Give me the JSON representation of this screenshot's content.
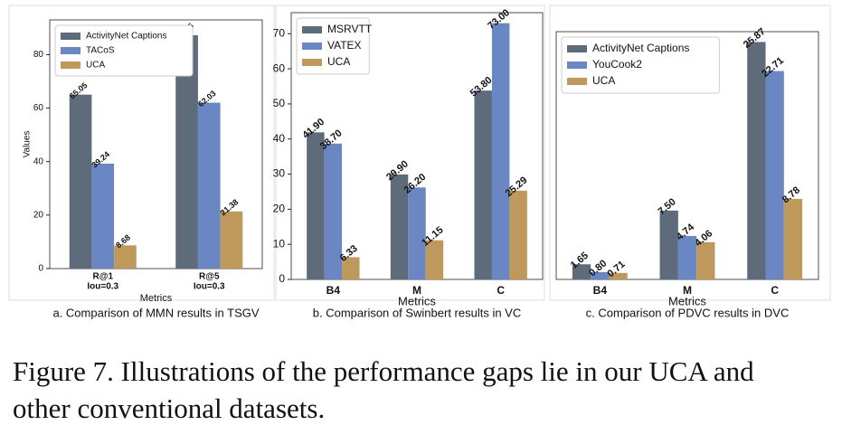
{
  "chart_data": [
    {
      "type": "bar",
      "caption": "a. Comparison of MMN results in TSGV",
      "ylabel": "Values",
      "xlabel": "Metrics",
      "categories": [
        [
          "R@1",
          "Iou=0.3"
        ],
        [
          "R@5",
          "Iou=0.3"
        ]
      ],
      "series": [
        {
          "name": "ActivityNet Captions",
          "color": "#5d6b7a",
          "values": [
            65.05,
            87.25
          ]
        },
        {
          "name": "TACoS",
          "color": "#6a86c3",
          "values": [
            39.24,
            62.03
          ]
        },
        {
          "name": "UCA",
          "color": "#bf995c",
          "values": [
            8.68,
            21.38
          ]
        }
      ],
      "ylim": [
        0,
        93
      ],
      "yticks": [
        0,
        20,
        40,
        60,
        80
      ],
      "legend": "upper left"
    },
    {
      "type": "bar",
      "caption": "b. Comparison of Swinbert results in VC",
      "xlabel": "Metrics",
      "categories": [
        [
          "B4"
        ],
        [
          "M"
        ],
        [
          "C"
        ]
      ],
      "series": [
        {
          "name": "MSRVTT",
          "color": "#5d6b7a",
          "values": [
            41.9,
            29.9,
            53.8
          ],
          "value_labels": [
            "41.90",
            "29.90",
            "53.80"
          ]
        },
        {
          "name": "VATEX",
          "color": "#6a86c3",
          "values": [
            38.7,
            26.2,
            73.0
          ],
          "value_labels": [
            "38.70",
            "26.20",
            "73.00"
          ]
        },
        {
          "name": "UCA",
          "color": "#bf995c",
          "values": [
            6.33,
            11.15,
            25.29
          ],
          "value_labels": [
            "6.33",
            "11.15",
            "25.29"
          ]
        }
      ],
      "ylim": [
        0,
        76
      ],
      "yticks": [
        0,
        10,
        20,
        30,
        40,
        50,
        60,
        70
      ],
      "legend": "upper left"
    },
    {
      "type": "bar",
      "caption": "c. Comparison of PDVC results in DVC",
      "xlabel": "Metrics",
      "categories": [
        [
          "B4"
        ],
        [
          "M"
        ],
        [
          "C"
        ]
      ],
      "series": [
        {
          "name": "ActivityNet Captions",
          "color": "#5d6b7a",
          "values": [
            1.65,
            7.5,
            25.87
          ],
          "value_labels": [
            "1.65",
            "7.50",
            "25.87"
          ]
        },
        {
          "name": "YouCook2",
          "color": "#6a86c3",
          "values": [
            0.8,
            4.74,
            22.71
          ],
          "value_labels": [
            "0.80",
            "4.74",
            "22.71"
          ]
        },
        {
          "name": "UCA",
          "color": "#bf995c",
          "values": [
            0.71,
            4.06,
            8.78
          ],
          "value_labels": [
            "0.71",
            "4.06",
            "8.78"
          ]
        }
      ],
      "ylim": [
        0,
        27
      ],
      "legend": "upper left"
    }
  ],
  "figure_caption": [
    "Figure 7. Illustrations of the performance gaps lie in our UCA and",
    "other conventional datasets."
  ]
}
